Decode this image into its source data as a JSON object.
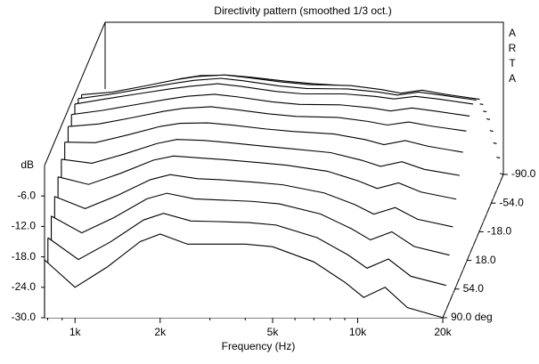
{
  "chart_data": {
    "type": "waterfall",
    "title": "Directivity pattern (smoothed 1/3 oct.)",
    "brand": "ARTA",
    "y_label": "dB",
    "x_label": "Frequency (Hz)",
    "x_log": true,
    "xlim": [
      780,
      20000
    ],
    "xticks": [
      {
        "value": 1000,
        "label": "1k"
      },
      {
        "value": 2000,
        "label": "2k"
      },
      {
        "value": 5000,
        "label": "5k"
      },
      {
        "value": 10000,
        "label": "10k"
      },
      {
        "value": 20000,
        "label": "20k"
      }
    ],
    "xminor": [
      800,
      900,
      3000,
      4000,
      6000,
      7000,
      8000,
      9000
    ],
    "ylim": [
      -30,
      0
    ],
    "yticks": [
      {
        "value": -6,
        "label": "-6.0"
      },
      {
        "value": -12,
        "label": "-12.0"
      },
      {
        "value": -18,
        "label": "-18.0"
      },
      {
        "value": -24,
        "label": "-24.0"
      },
      {
        "value": -30,
        "label": "-30.0"
      }
    ],
    "zlim": [
      -90,
      90
    ],
    "zticks": [
      {
        "value": -90,
        "label": "-90.0"
      },
      {
        "value": -54,
        "label": "-54.0"
      },
      {
        "value": -18,
        "label": "-18.0"
      },
      {
        "value": 18,
        "label": "18.0"
      },
      {
        "value": 54,
        "label": "54.0"
      },
      {
        "value": 90,
        "label": "90.0 deg"
      }
    ],
    "color": "#000000",
    "x": [
      780,
      1000,
      1300,
      1700,
      2000,
      2500,
      3000,
      4000,
      5000,
      7000,
      9000,
      10500,
      12500,
      15000,
      20000
    ],
    "z": [
      -90,
      -80,
      -70,
      -60,
      -50,
      -40,
      -30,
      -20,
      -10,
      0,
      10,
      20,
      30,
      40,
      50,
      60,
      70,
      80,
      90
    ],
    "series": [
      {
        "values": [
          -18.6,
          -24,
          -20,
          -15,
          -13.5,
          -15.5,
          -15.5,
          -15.5,
          -16,
          -19,
          -23,
          -26,
          -24,
          -28,
          -30
        ]
      },
      {
        "values": [
          -15.8,
          -20.1,
          -16.6,
          -12.3,
          -11.0,
          -12.5,
          -12.6,
          -12.8,
          -13.3,
          -15.8,
          -19.2,
          -21.8,
          -20.0,
          -23.4,
          -25.2
        ]
      },
      {
        "values": [
          -13.1,
          -16.4,
          -13.4,
          -9.7,
          -8.6,
          -9.7,
          -9.9,
          -10.2,
          -10.7,
          -12.7,
          -15.6,
          -17.8,
          -16.2,
          -19.1,
          -20.8
        ]
      },
      {
        "values": [
          -10.8,
          -13.2,
          -10.6,
          -7.5,
          -6.5,
          -7.3,
          -7.5,
          -8.0,
          -8.5,
          -10.1,
          -12.4,
          -14.3,
          -13.0,
          -15.3,
          -16.8
        ]
      },
      {
        "values": [
          -8.5,
          -10.0,
          -7.8,
          -5.2,
          -4.4,
          -4.8,
          -5.1,
          -5.7,
          -6.2,
          -7.4,
          -9.3,
          -10.8,
          -9.7,
          -11.5,
          -12.9
        ]
      },
      {
        "values": [
          -6.6,
          -7.4,
          -5.6,
          -3.5,
          -2.7,
          -2.9,
          -3.3,
          -4.0,
          -4.5,
          -5.3,
          -6.8,
          -8.0,
          -7.1,
          -8.6,
          -9.8
        ]
      },
      {
        "values": [
          -4.8,
          -4.9,
          -3.4,
          -1.7,
          -1.1,
          -1.0,
          -1.4,
          -2.2,
          -2.7,
          -3.2,
          -4.3,
          -5.3,
          -4.5,
          -5.6,
          -6.8
        ]
      },
      {
        "values": [
          -3.3,
          -2.8,
          -1.6,
          -0.3,
          0.3,
          0.6,
          0.1,
          -0.8,
          -1.3,
          -1.5,
          -2.3,
          -3.0,
          -2.4,
          -3.2,
          -4.2
        ]
      },
      {
        "values": [
          -2.5,
          -1.7,
          -0.6,
          0.5,
          1.1,
          1.5,
          1.0,
          0.0,
          -0.5,
          -0.6,
          -1.2,
          -1.8,
          -1.2,
          -1.8,
          -2.8
        ]
      },
      {
        "values": [
          -2,
          -1,
          0,
          1,
          1.5,
          2,
          1.5,
          0.5,
          0,
          0,
          -0.5,
          -1,
          -0.5,
          -1,
          -2
        ]
      },
      {
        "values": [
          -2.5,
          -1.7,
          -0.6,
          0.5,
          1.1,
          1.5,
          1.0,
          0.0,
          -0.5,
          -0.6,
          -1.2,
          -1.8,
          -1.2,
          -1.8,
          -2.8
        ]
      },
      {
        "values": [
          -3.3,
          -2.8,
          -1.6,
          -0.3,
          0.3,
          0.6,
          0.1,
          -0.8,
          -1.3,
          -1.5,
          -2.3,
          -3.0,
          -2.4,
          -3.2,
          -4.2
        ]
      },
      {
        "values": [
          -4.8,
          -4.9,
          -3.4,
          -1.7,
          -1.1,
          -1.0,
          -1.4,
          -2.2,
          -2.7,
          -3.2,
          -4.3,
          -5.3,
          -4.5,
          -5.6,
          -6.8
        ]
      },
      {
        "values": [
          -6.6,
          -7.4,
          -5.6,
          -3.5,
          -2.7,
          -2.9,
          -3.3,
          -4.0,
          -4.5,
          -5.3,
          -6.8,
          -8.0,
          -7.1,
          -8.6,
          -9.8
        ]
      },
      {
        "values": [
          -8.5,
          -10.0,
          -7.8,
          -5.2,
          -4.4,
          -4.8,
          -5.1,
          -5.7,
          -6.2,
          -7.4,
          -9.3,
          -10.8,
          -9.7,
          -11.5,
          -12.9
        ]
      },
      {
        "values": [
          -10.8,
          -13.2,
          -10.6,
          -7.5,
          -6.5,
          -7.3,
          -7.5,
          -8.0,
          -8.5,
          -10.1,
          -12.4,
          -14.3,
          -13.0,
          -15.3,
          -16.8
        ]
      },
      {
        "values": [
          -13.1,
          -16.4,
          -13.4,
          -9.7,
          -8.6,
          -9.7,
          -9.9,
          -10.2,
          -10.7,
          -12.7,
          -15.6,
          -17.8,
          -16.2,
          -19.1,
          -20.8
        ]
      },
      {
        "values": [
          -15.8,
          -20.1,
          -16.6,
          -12.3,
          -11.0,
          -12.5,
          -12.6,
          -12.8,
          -13.3,
          -15.8,
          -19.2,
          -21.8,
          -20.0,
          -23.4,
          -25.2
        ]
      },
      {
        "values": [
          -18.6,
          -24,
          -20,
          -15,
          -13.5,
          -15.5,
          -15.5,
          -15.5,
          -16,
          -19,
          -23,
          -26,
          -24,
          -28,
          -30
        ]
      }
    ]
  }
}
